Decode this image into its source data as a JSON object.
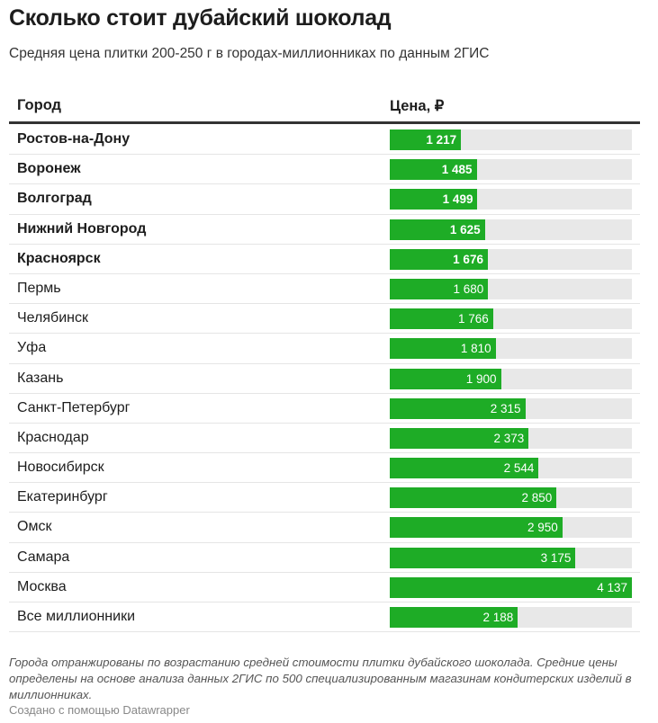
{
  "chart_data": {
    "type": "table",
    "title": "Сколько стоит дубайский шоколад",
    "subtitle": "Средняя цена плитки 200-250 г в городах-миллионниках по данным 2ГИС",
    "columns": [
      "Город",
      "Цена, ₽"
    ],
    "max": 4137,
    "rows": [
      {
        "city": "Ростов-на-Дону",
        "value": 1217,
        "label": "1 217",
        "bold": true
      },
      {
        "city": "Воронеж",
        "value": 1485,
        "label": "1 485",
        "bold": true
      },
      {
        "city": "Волгоград",
        "value": 1499,
        "label": "1 499",
        "bold": true
      },
      {
        "city": "Нижний Новгород",
        "value": 1625,
        "label": "1 625",
        "bold": true
      },
      {
        "city": "Красноярск",
        "value": 1676,
        "label": "1 676",
        "bold": true
      },
      {
        "city": "Пермь",
        "value": 1680,
        "label": "1 680",
        "bold": false
      },
      {
        "city": "Челябинск",
        "value": 1766,
        "label": "1 766",
        "bold": false
      },
      {
        "city": "Уфа",
        "value": 1810,
        "label": "1 810",
        "bold": false
      },
      {
        "city": "Казань",
        "value": 1900,
        "label": "1 900",
        "bold": false
      },
      {
        "city": "Санкт-Петербург",
        "value": 2315,
        "label": "2 315",
        "bold": false
      },
      {
        "city": "Краснодар",
        "value": 2373,
        "label": "2 373",
        "bold": false
      },
      {
        "city": "Новосибирск",
        "value": 2544,
        "label": "2 544",
        "bold": false
      },
      {
        "city": "Екатеринбург",
        "value": 2850,
        "label": "2 850",
        "bold": false
      },
      {
        "city": "Омск",
        "value": 2950,
        "label": "2 950",
        "bold": false
      },
      {
        "city": "Самара",
        "value": 3175,
        "label": "3 175",
        "bold": false
      },
      {
        "city": "Москва",
        "value": 4137,
        "label": "4 137",
        "bold": false
      },
      {
        "city": "Все миллионники",
        "value": 2188,
        "label": "2 188",
        "bold": false
      }
    ],
    "bar_color": "#1eac26",
    "note": "Города отранжированы по возрастанию средней стоимости плитки дубайского шоколада. Средние цены определены на основе анализа данных 2ГИС по 500 специализированным магазинам кондитерских изделий в миллионниках.",
    "credit": "Создано с помощью Datawrapper"
  }
}
